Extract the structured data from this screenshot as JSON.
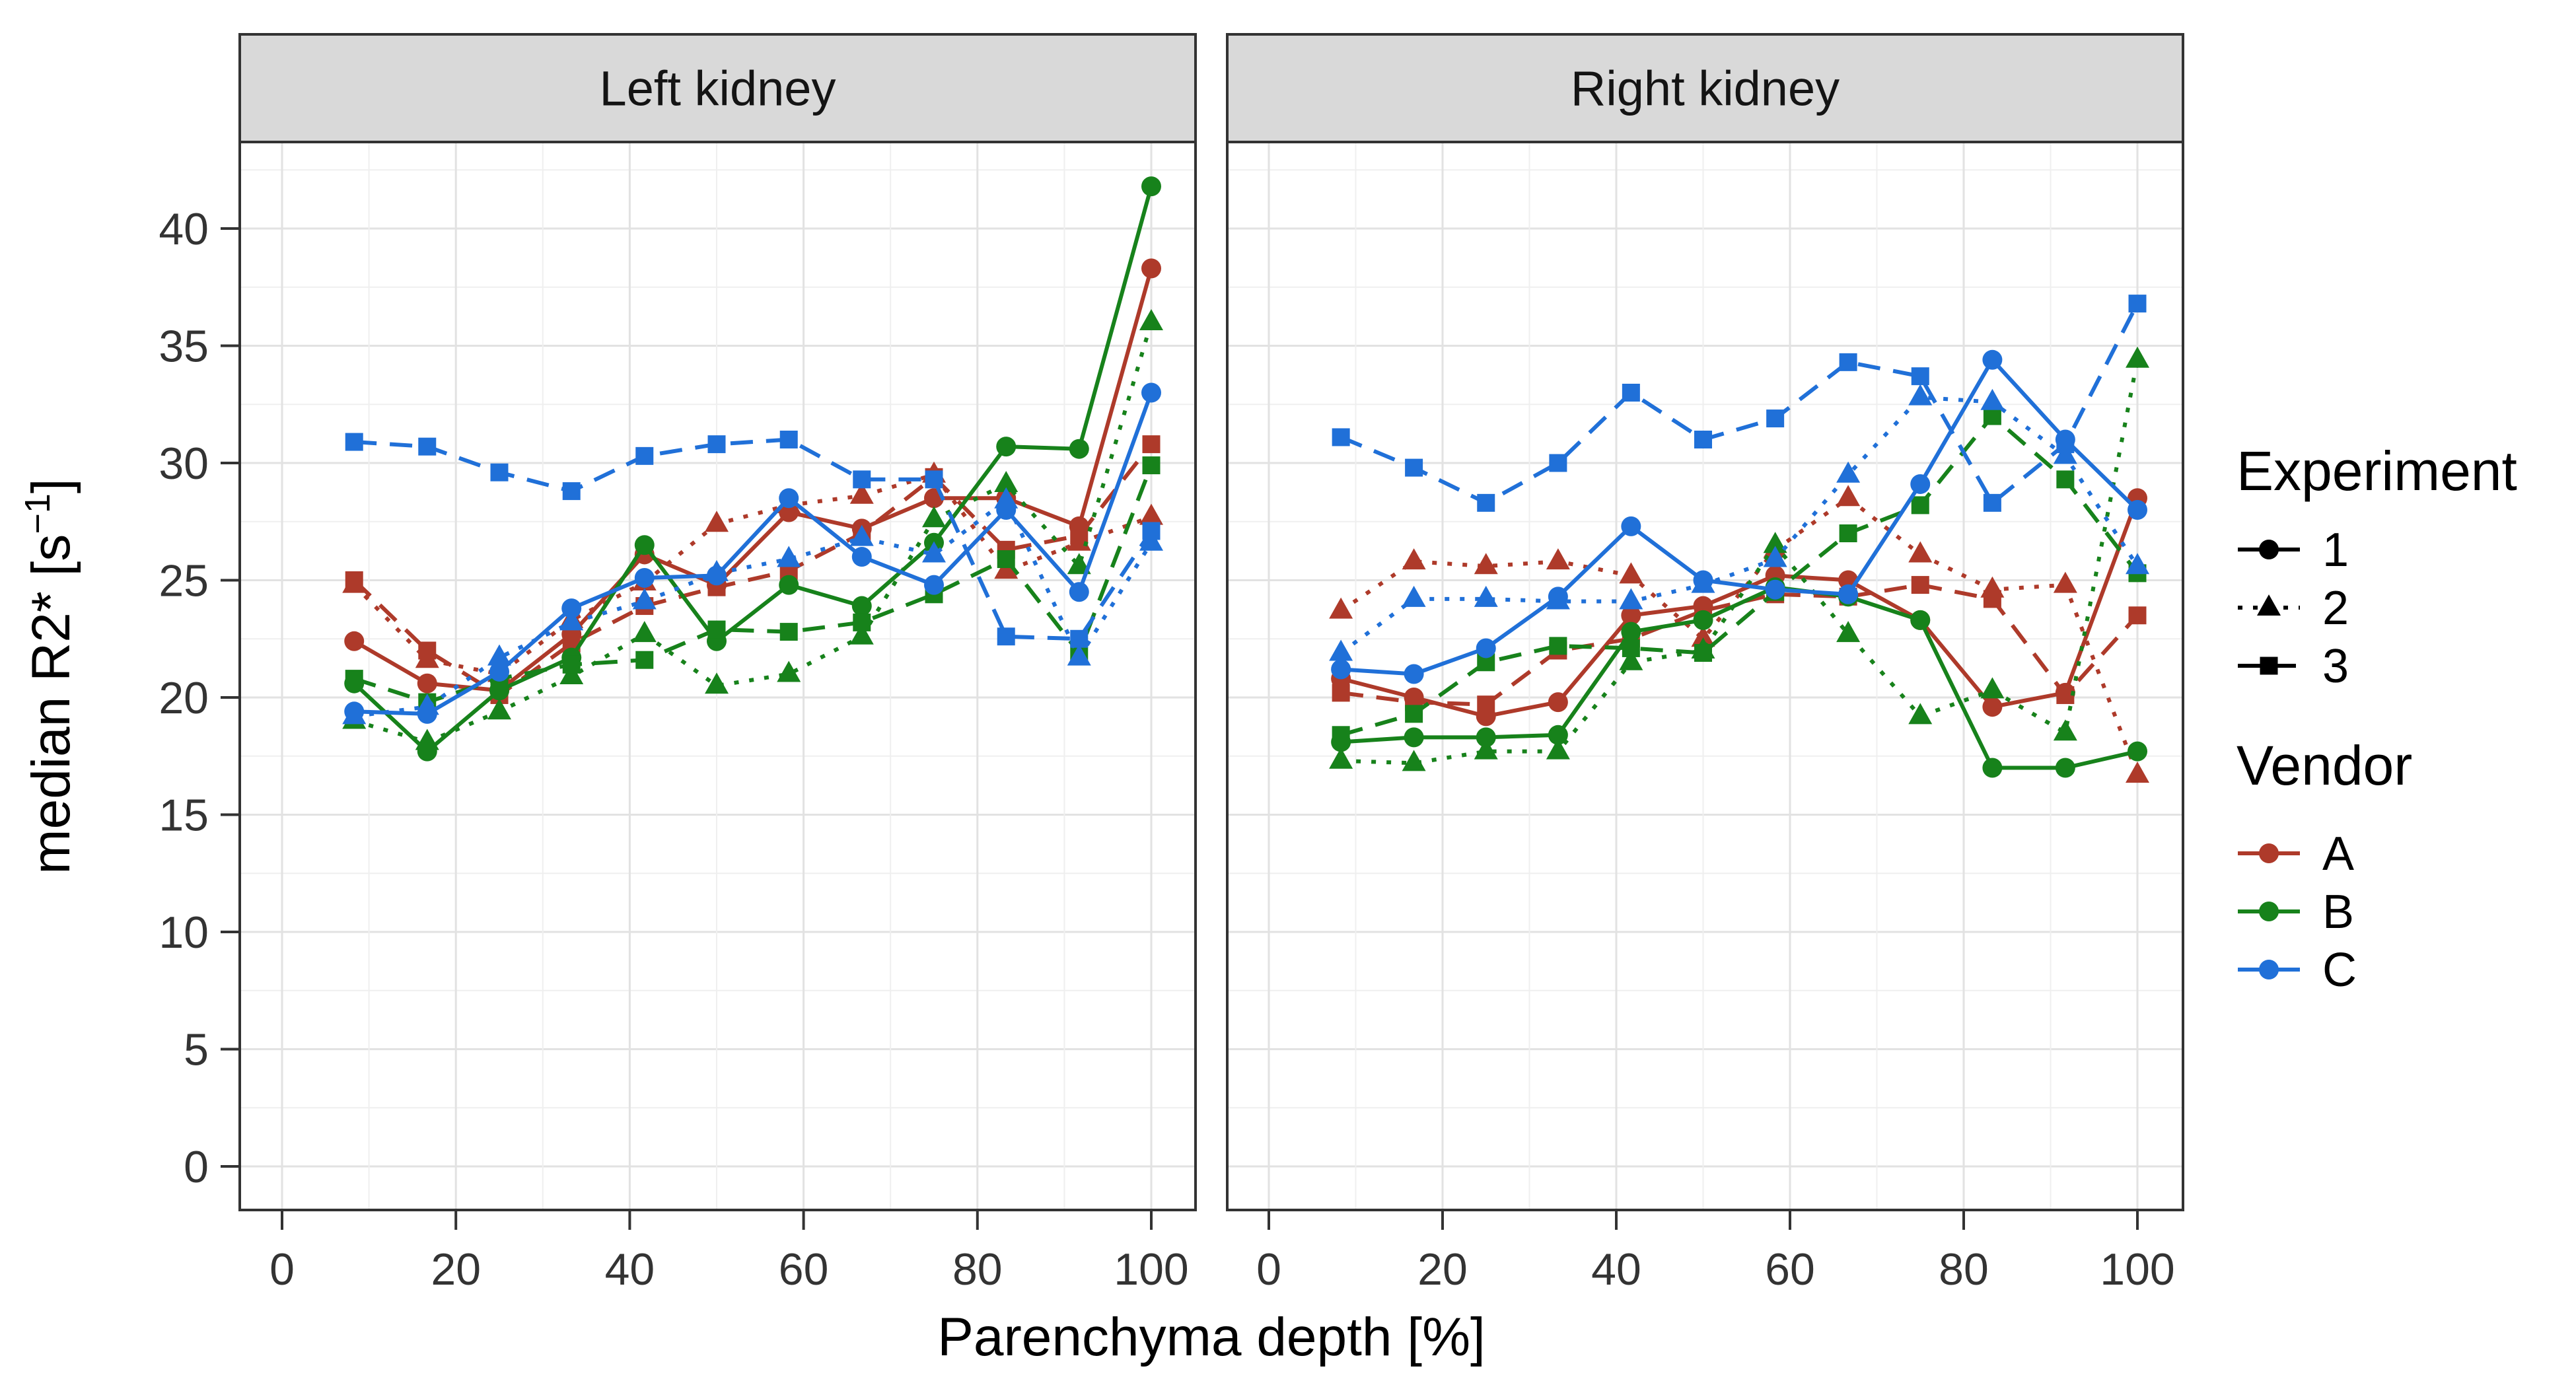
{
  "chart_data": {
    "type": "line",
    "xlabel": "Parenchyma depth [%]",
    "ylabel_base": "median R2* [s",
    "ylabel_sup": "−1",
    "ylabel_close": "]",
    "x": [
      8.3,
      16.7,
      25,
      33.3,
      41.7,
      50,
      58.3,
      66.7,
      75,
      83.3,
      91.7,
      100
    ],
    "xticks": [
      0,
      20,
      40,
      60,
      80,
      100
    ],
    "yticks": [
      0,
      5,
      10,
      15,
      20,
      25,
      30,
      35,
      40
    ],
    "xlim": [
      0,
      100
    ],
    "ylim": [
      0,
      42
    ],
    "grid": "major-minor",
    "legend_position": "right",
    "colors": {
      "A": "#ae3a2a",
      "B": "#17821b",
      "C": "#2070d8"
    },
    "strip_fill": "#d9d9d9",
    "border_color": "#333333",
    "grid_major_color": "#e2e2e2",
    "grid_minor_color": "#efefef",
    "tick_label_color": "#333333",
    "facets": [
      {
        "label": "Left kidney",
        "series": [
          {
            "id": "A1",
            "vendor": "A",
            "experiment": "1",
            "values": [
              22.4,
              20.6,
              20.3,
              22.7,
              26.1,
              24.8,
              27.9,
              27.2,
              28.5,
              28.5,
              27.3,
              38.3
            ]
          },
          {
            "id": "A2",
            "vendor": "A",
            "experiment": "2",
            "values": [
              24.8,
              21.6,
              21.0,
              23.3,
              24.9,
              27.4,
              28.2,
              28.6,
              29.5,
              25.4,
              26.6,
              27.7
            ]
          },
          {
            "id": "A3",
            "vendor": "A",
            "experiment": "3",
            "values": [
              25.0,
              22.0,
              20.1,
              22.3,
              23.9,
              24.7,
              25.4,
              27.0,
              29.4,
              26.3,
              26.9,
              30.8
            ]
          },
          {
            "id": "B1",
            "vendor": "B",
            "experiment": "1",
            "values": [
              20.6,
              17.7,
              20.3,
              21.7,
              26.5,
              22.4,
              24.8,
              23.9,
              26.6,
              30.7,
              30.6,
              41.8
            ]
          },
          {
            "id": "B2",
            "vendor": "B",
            "experiment": "2",
            "values": [
              19.0,
              18.1,
              19.4,
              20.9,
              22.7,
              20.5,
              21.0,
              22.6,
              27.6,
              29.1,
              25.6,
              36.0
            ]
          },
          {
            "id": "B3",
            "vendor": "B",
            "experiment": "3",
            "values": [
              20.8,
              19.8,
              20.8,
              21.4,
              21.6,
              22.9,
              22.8,
              23.2,
              24.4,
              25.9,
              21.9,
              29.9
            ]
          },
          {
            "id": "C1",
            "vendor": "C",
            "experiment": "1",
            "values": [
              19.4,
              19.3,
              21.1,
              23.8,
              25.1,
              25.2,
              28.5,
              26.0,
              24.8,
              28.0,
              24.5,
              33.0
            ]
          },
          {
            "id": "C2",
            "vendor": "C",
            "experiment": "2",
            "values": [
              19.2,
              19.6,
              21.7,
              23.2,
              24.1,
              25.3,
              25.9,
              26.8,
              26.1,
              28.4,
              21.7,
              26.6
            ]
          },
          {
            "id": "C3",
            "vendor": "C",
            "experiment": "3",
            "values": [
              30.9,
              30.7,
              29.6,
              28.8,
              30.3,
              30.8,
              31.0,
              29.3,
              29.3,
              22.6,
              22.5,
              27.1
            ]
          }
        ]
      },
      {
        "label": "Right kidney",
        "series": [
          {
            "id": "A1",
            "vendor": "A",
            "experiment": "1",
            "values": [
              20.8,
              20.0,
              19.2,
              19.8,
              23.5,
              23.9,
              25.2,
              25.0,
              23.3,
              19.6,
              20.2,
              28.5
            ]
          },
          {
            "id": "A2",
            "vendor": "A",
            "experiment": "2",
            "values": [
              23.7,
              25.8,
              25.6,
              25.8,
              25.2,
              22.5,
              26.3,
              28.5,
              26.1,
              24.6,
              24.8,
              16.7
            ]
          },
          {
            "id": "A3",
            "vendor": "A",
            "experiment": "3",
            "values": [
              20.2,
              19.8,
              19.7,
              22.0,
              22.5,
              23.7,
              24.4,
              24.3,
              24.8,
              24.2,
              20.1,
              23.5
            ]
          },
          {
            "id": "B1",
            "vendor": "B",
            "experiment": "1",
            "values": [
              18.1,
              18.3,
              18.3,
              18.4,
              22.8,
              23.3,
              24.7,
              24.3,
              23.3,
              17.0,
              17.0,
              17.7
            ]
          },
          {
            "id": "B2",
            "vendor": "B",
            "experiment": "2",
            "values": [
              17.3,
              17.2,
              17.7,
              17.7,
              21.5,
              22.0,
              26.5,
              22.7,
              19.2,
              20.3,
              18.5,
              34.4
            ]
          },
          {
            "id": "B3",
            "vendor": "B",
            "experiment": "3",
            "values": [
              18.4,
              19.3,
              21.5,
              22.2,
              22.1,
              21.9,
              24.5,
              27.0,
              28.2,
              32.0,
              29.3,
              25.3
            ]
          },
          {
            "id": "C1",
            "vendor": "C",
            "experiment": "1",
            "values": [
              21.2,
              21.0,
              22.1,
              24.3,
              27.3,
              25.0,
              24.6,
              24.4,
              29.1,
              34.4,
              31.0,
              28.0
            ]
          },
          {
            "id": "C2",
            "vendor": "C",
            "experiment": "2",
            "values": [
              21.9,
              24.2,
              24.2,
              24.1,
              24.1,
              24.8,
              25.9,
              29.5,
              32.8,
              32.6,
              30.3,
              25.6
            ]
          },
          {
            "id": "C3",
            "vendor": "C",
            "experiment": "3",
            "values": [
              31.1,
              29.8,
              28.3,
              30.0,
              33.0,
              31.0,
              31.9,
              34.3,
              33.7,
              28.3,
              30.8,
              36.8
            ]
          }
        ]
      }
    ],
    "legend": {
      "experiment_title": "Experiment",
      "experiments": [
        {
          "label": "1",
          "shape": "circle",
          "dash": "solid"
        },
        {
          "label": "2",
          "shape": "triangle",
          "dash": "dotted"
        },
        {
          "label": "3",
          "shape": "square",
          "dash": "dashed"
        }
      ],
      "vendor_title": "Vendor",
      "vendors": [
        {
          "label": "A",
          "color": "#ae3a2a"
        },
        {
          "label": "B",
          "color": "#17821b"
        },
        {
          "label": "C",
          "color": "#2070d8"
        }
      ]
    }
  }
}
